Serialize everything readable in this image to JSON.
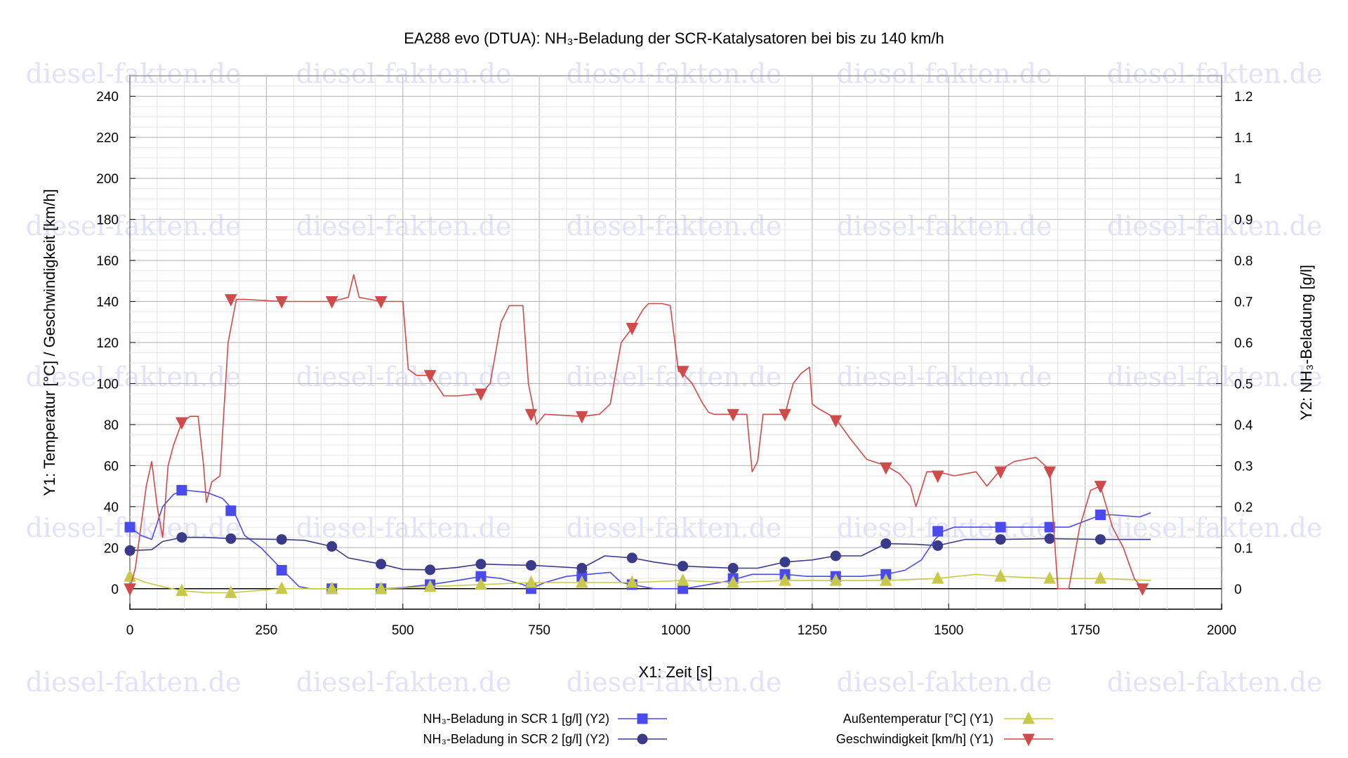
{
  "watermark": "diesel-fakten.de",
  "chart_data": {
    "type": "line",
    "title": "EA288 evo (DTUA): NH₃-Beladung der SCR-Katalysatoren bei bis zu 140 km/h",
    "xlabel": "X1: Zeit [s]",
    "ylabel_left": "Y1: Temperatur [°C] / Geschwindigkeit [km/h]",
    "ylabel_right": "Y2: NH₃-Beladung [g/l]",
    "xlim": [
      0,
      2000
    ],
    "ylim_left": [
      -10,
      250
    ],
    "ylim_right": [
      -0.05,
      1.25
    ],
    "x_ticks": [
      "0",
      "250",
      "500",
      "750",
      "1000",
      "1250",
      "1500",
      "1750",
      "2000"
    ],
    "y_left_ticks": [
      "0",
      "20",
      "40",
      "60",
      "80",
      "100",
      "120",
      "140",
      "160",
      "180",
      "200",
      "220",
      "240"
    ],
    "y_right_ticks": [
      "0",
      "0.1",
      "0.2",
      "0.3",
      "0.4",
      "0.5",
      "0.6",
      "0.7",
      "0.8",
      "0.9",
      "1",
      "1.1",
      "1.2"
    ],
    "grid": true,
    "legend_position": "bottom",
    "series": [
      {
        "name": "NH₃-Beladung in SCR 1 [g/l] (Y2)",
        "axis": "y2",
        "color": "#4a4aee",
        "marker": "square",
        "x": [
          0,
          20,
          40,
          60,
          80,
          100,
          140,
          170,
          190,
          210,
          240,
          280,
          310,
          330,
          370,
          460,
          500,
          550,
          600,
          645,
          680,
          720,
          735,
          760,
          800,
          880,
          900,
          920,
          960,
          1015,
          1060,
          1100,
          1140,
          1200,
          1240,
          1295,
          1340,
          1385,
          1420,
          1450,
          1475,
          1490,
          1510,
          1550,
          1595,
          1650,
          1690,
          1720,
          1760,
          1780,
          1800,
          1850,
          1870
        ],
        "y": [
          0.15,
          0.13,
          0.12,
          0.2,
          0.23,
          0.24,
          0.235,
          0.22,
          0.19,
          0.13,
          0.1,
          0.045,
          0.005,
          0.0,
          0.0,
          0.0,
          0.003,
          0.01,
          0.02,
          0.03,
          0.025,
          0.01,
          0.0,
          0.015,
          0.03,
          0.04,
          0.015,
          0.01,
          0.0,
          0.0,
          0.01,
          0.02,
          0.035,
          0.035,
          0.03,
          0.03,
          0.03,
          0.035,
          0.045,
          0.07,
          0.12,
          0.14,
          0.15,
          0.15,
          0.15,
          0.15,
          0.15,
          0.15,
          0.17,
          0.18,
          0.18,
          0.175,
          0.185
        ],
        "markers_x": [
          0,
          95,
          185,
          278,
          370,
          460,
          550,
          643,
          735,
          828,
          920,
          1013,
          1105,
          1200,
          1293,
          1385,
          1480,
          1595,
          1685,
          1778
        ],
        "markers_y": [
          0.15,
          0.24,
          0.19,
          0.045,
          0.0,
          0.0,
          0.01,
          0.03,
          0.0,
          0.03,
          0.01,
          0.0,
          0.025,
          0.035,
          0.03,
          0.035,
          0.14,
          0.15,
          0.15,
          0.18
        ]
      },
      {
        "name": "NH₃-Beladung in SCR 2 [g/l] (Y2)",
        "axis": "y2",
        "color": "#3a3a8a",
        "marker": "circle",
        "x": [
          0,
          40,
          60,
          95,
          140,
          185,
          278,
          320,
          370,
          400,
          460,
          500,
          550,
          600,
          643,
          700,
          735,
          828,
          870,
          920,
          960,
          1013,
          1105,
          1150,
          1200,
          1250,
          1293,
          1340,
          1385,
          1440,
          1480,
          1530,
          1595,
          1685,
          1778,
          1870
        ],
        "y": [
          0.093,
          0.095,
          0.115,
          0.125,
          0.125,
          0.122,
          0.12,
          0.118,
          0.103,
          0.075,
          0.06,
          0.047,
          0.046,
          0.052,
          0.06,
          0.058,
          0.057,
          0.05,
          0.08,
          0.075,
          0.065,
          0.055,
          0.05,
          0.05,
          0.065,
          0.07,
          0.08,
          0.08,
          0.11,
          0.108,
          0.105,
          0.12,
          0.12,
          0.122,
          0.12,
          0.12
        ],
        "markers_x": [
          0,
          95,
          185,
          278,
          370,
          460,
          550,
          643,
          735,
          828,
          920,
          1013,
          1105,
          1200,
          1293,
          1385,
          1480,
          1595,
          1685,
          1778
        ],
        "markers_y": [
          0.093,
          0.125,
          0.122,
          0.12,
          0.103,
          0.06,
          0.046,
          0.06,
          0.057,
          0.05,
          0.075,
          0.055,
          0.05,
          0.065,
          0.08,
          0.11,
          0.105,
          0.12,
          0.122,
          0.12
        ]
      },
      {
        "name": "Außentemperatur [°C] (Y1)",
        "axis": "y1",
        "color": "#c8c84a",
        "marker": "triangle-up",
        "x": [
          0,
          30,
          60,
          95,
          140,
          185,
          230,
          278,
          370,
          460,
          550,
          643,
          735,
          828,
          920,
          1013,
          1105,
          1200,
          1293,
          1385,
          1480,
          1550,
          1595,
          1685,
          1778,
          1870
        ],
        "y": [
          6,
          3,
          1,
          -1,
          -2,
          -2,
          -1,
          0,
          0,
          0,
          1,
          2,
          3,
          3,
          3,
          4,
          3,
          4,
          4,
          4,
          5,
          7,
          6,
          5,
          5,
          4
        ],
        "markers_x": [
          0,
          95,
          185,
          278,
          370,
          460,
          550,
          643,
          735,
          828,
          920,
          1013,
          1105,
          1200,
          1293,
          1385,
          1480,
          1595,
          1685,
          1778
        ],
        "markers_y": [
          6,
          -1,
          -2,
          0,
          0,
          0,
          1,
          2,
          3,
          3,
          3,
          4,
          3,
          4,
          4,
          4,
          5,
          6,
          5,
          5
        ]
      },
      {
        "name": "Geschwindigkeit [km/h] (Y1)",
        "axis": "y1",
        "color": "#d04a4a",
        "marker": "triangle-down",
        "x": [
          0,
          10,
          20,
          30,
          40,
          50,
          60,
          70,
          80,
          95,
          110,
          125,
          135,
          140,
          150,
          165,
          180,
          195,
          210,
          278,
          370,
          400,
          410,
          420,
          460,
          500,
          510,
          525,
          550,
          575,
          600,
          643,
          660,
          680,
          695,
          710,
          720,
          730,
          745,
          760,
          828,
          860,
          880,
          900,
          920,
          940,
          950,
          975,
          990,
          1005,
          1013,
          1030,
          1050,
          1060,
          1070,
          1080,
          1105,
          1130,
          1140,
          1150,
          1160,
          1180,
          1200,
          1215,
          1230,
          1245,
          1250,
          1260,
          1293,
          1320,
          1350,
          1385,
          1410,
          1430,
          1440,
          1460,
          1480,
          1510,
          1550,
          1570,
          1595,
          1620,
          1660,
          1685,
          1700,
          1720,
          1740,
          1760,
          1778,
          1800,
          1820,
          1840,
          1855
        ],
        "y": [
          0,
          10,
          30,
          50,
          62,
          40,
          25,
          60,
          70,
          81,
          84,
          84,
          60,
          42,
          52,
          55,
          120,
          141,
          141,
          140,
          140,
          142,
          153,
          142,
          140,
          140,
          107,
          104,
          104,
          94,
          94,
          95,
          100,
          130,
          138,
          138,
          138,
          100,
          80,
          85,
          84,
          85,
          90,
          120,
          127,
          136,
          139,
          139,
          138,
          106,
          105,
          100,
          90,
          86,
          85,
          85,
          85,
          85,
          57,
          62,
          85,
          85,
          85,
          100,
          105,
          108,
          90,
          88,
          83,
          73,
          63,
          60,
          56,
          50,
          40,
          57,
          57,
          55,
          57,
          50,
          58,
          62,
          64,
          58,
          0,
          0,
          30,
          48,
          50,
          30,
          20,
          5,
          0
        ],
        "markers_x": [
          0,
          95,
          185,
          278,
          370,
          460,
          550,
          643,
          735,
          828,
          920,
          1013,
          1105,
          1200,
          1293,
          1385,
          1480,
          1595,
          1685,
          1778,
          1855
        ],
        "markers_y": [
          0,
          81,
          141,
          140,
          140,
          140,
          104,
          95,
          85,
          84,
          127,
          106,
          85,
          85,
          82,
          59,
          55,
          57,
          57,
          50,
          0
        ]
      }
    ]
  }
}
